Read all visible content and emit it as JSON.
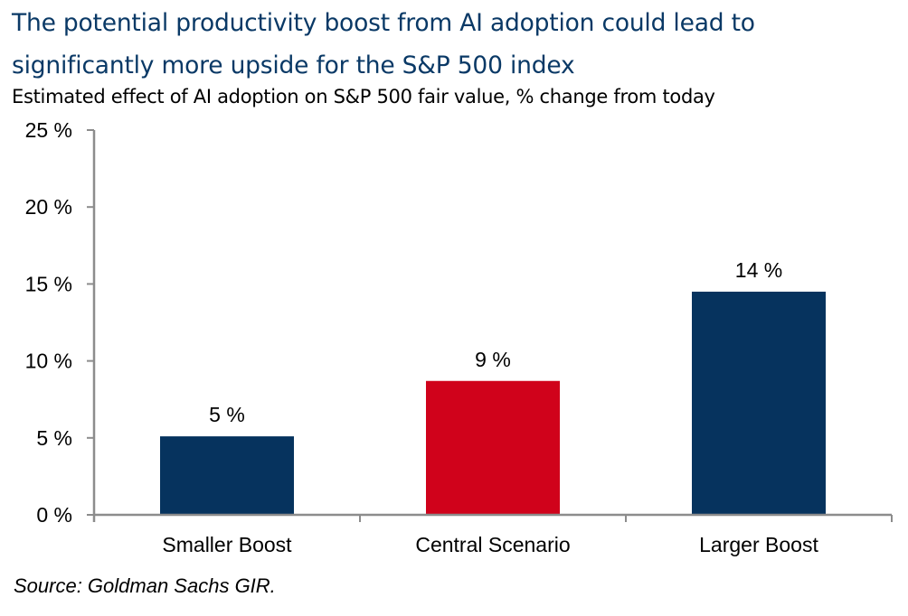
{
  "header": {
    "title": "The potential productivity boost from AI adoption could lead to significantly more upside for the S&P 500 index",
    "subtitle": "Estimated effect of AI adoption on S&P 500 fair value, % change from today"
  },
  "footer": {
    "source": "Source: Goldman Sachs GIR."
  },
  "colors": {
    "title": "#0a3966",
    "navy_bar": "#06335e",
    "red_bar": "#d0021b",
    "axis": "#8c8c8c"
  },
  "chart_data": {
    "type": "bar",
    "title": "Estimated effect of AI adoption on S&P 500 fair value, % change from today",
    "xlabel": "",
    "ylabel": "",
    "categories": [
      "Smaller Boost",
      "Central Scenario",
      "Larger Boost"
    ],
    "values": [
      5.1,
      8.7,
      14.5
    ],
    "data_labels": [
      "5 %",
      "9 %",
      "14 %"
    ],
    "bar_colors": [
      "#06335e",
      "#d0021b",
      "#06335e"
    ],
    "ylim": [
      0,
      25
    ],
    "yticks": [
      0,
      5,
      10,
      15,
      20,
      25
    ],
    "ytick_labels": [
      "0 %",
      "5 %",
      "10 %",
      "15 %",
      "20 %",
      "25 %"
    ],
    "grid": false,
    "legend": "none"
  }
}
